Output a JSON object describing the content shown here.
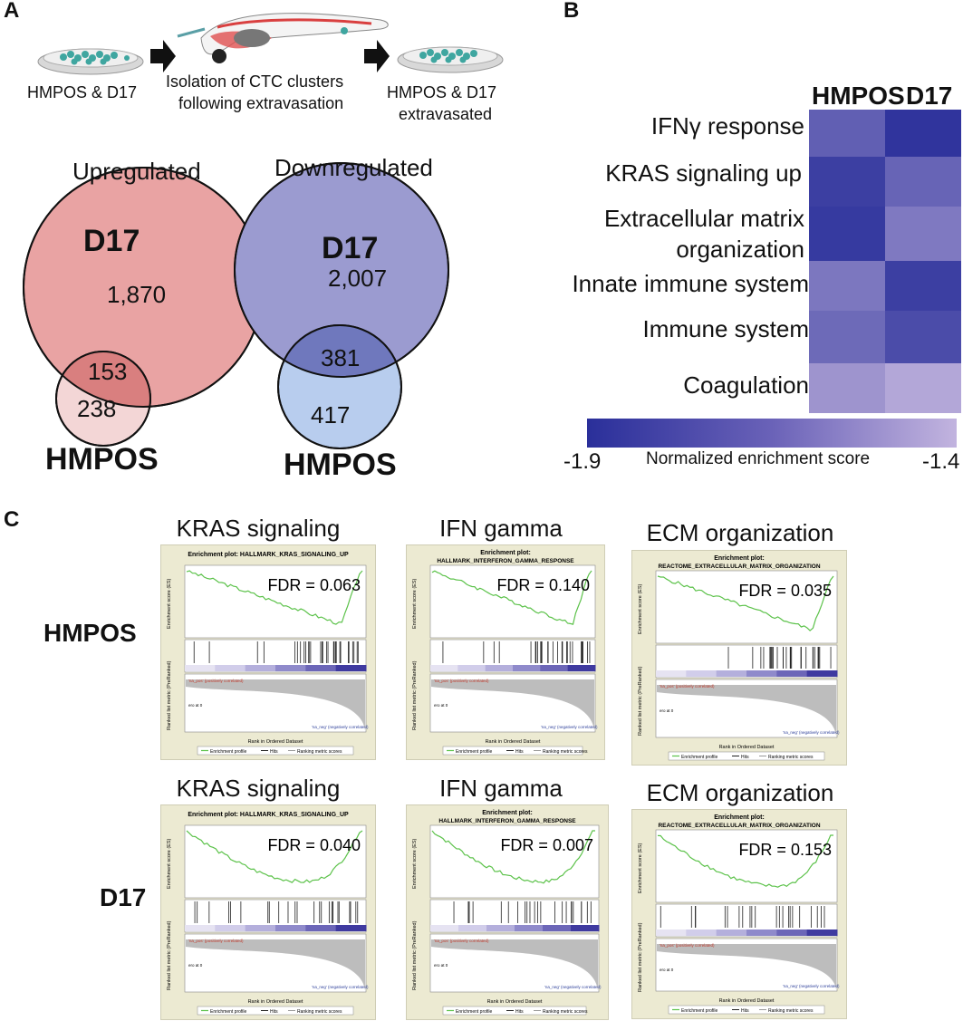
{
  "panelA": {
    "letter": "A",
    "labels": {
      "left_dish": "HMPOS & D17",
      "middle_line1": "Isolation of CTC clusters",
      "middle_line2": "following extravasation",
      "right_line1": "HMPOS & D17",
      "right_line2": "extravasated"
    },
    "venn_up": {
      "title": "Upregulated",
      "big_label": "D17",
      "big_count": "1,870",
      "overlap": "153",
      "small_count": "238",
      "small_label": "HMPOS",
      "big_color": "#e9a3a3",
      "small_color": "#f3d6d6",
      "overlap_color": "#d97f7f"
    },
    "venn_down": {
      "title": "Downregulated",
      "big_label": "D17",
      "big_count": "2,007",
      "overlap": "381",
      "small_count": "417",
      "small_label": "HMPOS",
      "big_color": "#9b9bd0",
      "small_color": "#b8cdee",
      "overlap_color": "#6f78bd"
    }
  },
  "panelB": {
    "letter": "B",
    "columns": [
      "HMPOS",
      "D17"
    ],
    "rows": [
      {
        "label": "IFNγ response",
        "label2": "",
        "values": [
          -1.72,
          -1.88
        ]
      },
      {
        "label": "KRAS signaling up",
        "label2": "",
        "values": [
          -1.84,
          -1.7
        ]
      },
      {
        "label": "Extracellular matrix",
        "label2": "organization",
        "values": [
          -1.86,
          -1.62
        ]
      },
      {
        "label": "Innate immune system",
        "label2": "",
        "values": [
          -1.63,
          -1.84
        ]
      },
      {
        "label": "Immune system",
        "label2": "",
        "values": [
          -1.68,
          -1.79
        ]
      },
      {
        "label": "Coagulation",
        "label2": "",
        "values": [
          -1.52,
          -1.45
        ]
      }
    ],
    "colorbar": {
      "min_label": "-1.9",
      "max_label": "-1.4",
      "title": "Normalized enrichment score",
      "min": -1.9,
      "max": -1.4,
      "color_low": "#2a2f9a",
      "color_high": "#c2b4df"
    }
  },
  "panelC": {
    "letter": "C",
    "row_labels": [
      "HMPOS",
      "D17"
    ],
    "plots": [
      {
        "title": "KRAS signaling",
        "plot_title1": "Enrichment plot: HALLMARK_KRAS_SIGNALING_UP",
        "plot_title2": "",
        "fdr": "FDR = 0.063",
        "shape": "late"
      },
      {
        "title": "IFN gamma",
        "plot_title1": "Enrichment plot:",
        "plot_title2": "HALLMARK_INTERFERON_GAMMA_RESPONSE",
        "fdr": "FDR = 0.140",
        "shape": "late"
      },
      {
        "title": "ECM organization",
        "plot_title1": "Enrichment plot:",
        "plot_title2": "REACTOME_EXTRACELLULAR_MATRIX_ORGANIZATION",
        "fdr": "FDR = 0.035",
        "shape": "late"
      },
      {
        "title": "KRAS signaling",
        "plot_title1": "Enrichment plot: HALLMARK_KRAS_SIGNALING_UP",
        "plot_title2": "",
        "fdr": "FDR = 0.040",
        "shape": "mid"
      },
      {
        "title": "IFN gamma",
        "plot_title1": "Enrichment plot:",
        "plot_title2": "HALLMARK_INTERFERON_GAMMA_RESPONSE",
        "fdr": "FDR = 0.007",
        "shape": "mid"
      },
      {
        "title": "ECM organization",
        "plot_title1": "Enrichment plot:",
        "plot_title2": "REACTOME_EXTRACELLULAR_MATRIX_ORGANIZATION",
        "fdr": "FDR = 0.153",
        "shape": "mid"
      }
    ],
    "legend": [
      "Enrichment profile",
      "Hits",
      "Ranking metric scores"
    ],
    "y_axis_label": "Enrichment score (ES)",
    "rank_axis_label": "Ranked list metric (PreRanked)",
    "x_axis_label": "Rank in Ordered Dataset",
    "pos_label": "'na_pos' (positively correlated)",
    "neg_label": "'na_neg' (negatively correlated)",
    "zero_label": "ero at 0",
    "curve_color": "#5cc24a"
  }
}
